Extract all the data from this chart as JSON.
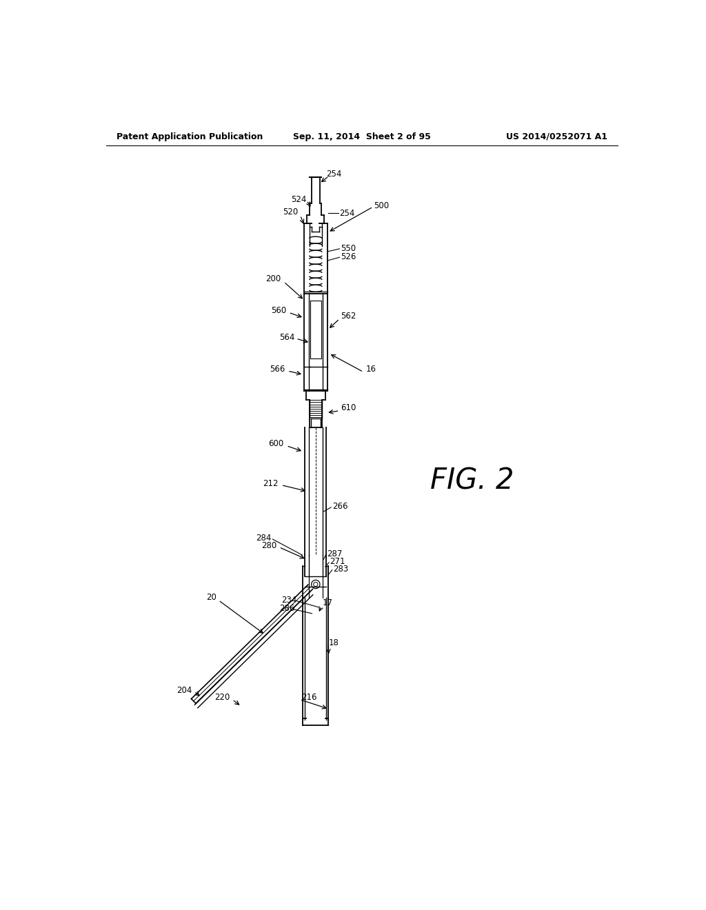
{
  "bg_color": "#ffffff",
  "header_left": "Patent Application Publication",
  "header_center": "Sep. 11, 2014  Sheet 2 of 95",
  "header_right": "US 2014/0252071 A1",
  "fig_label": "FIG. 2",
  "line_color": "#000000",
  "text_color": "#000000"
}
